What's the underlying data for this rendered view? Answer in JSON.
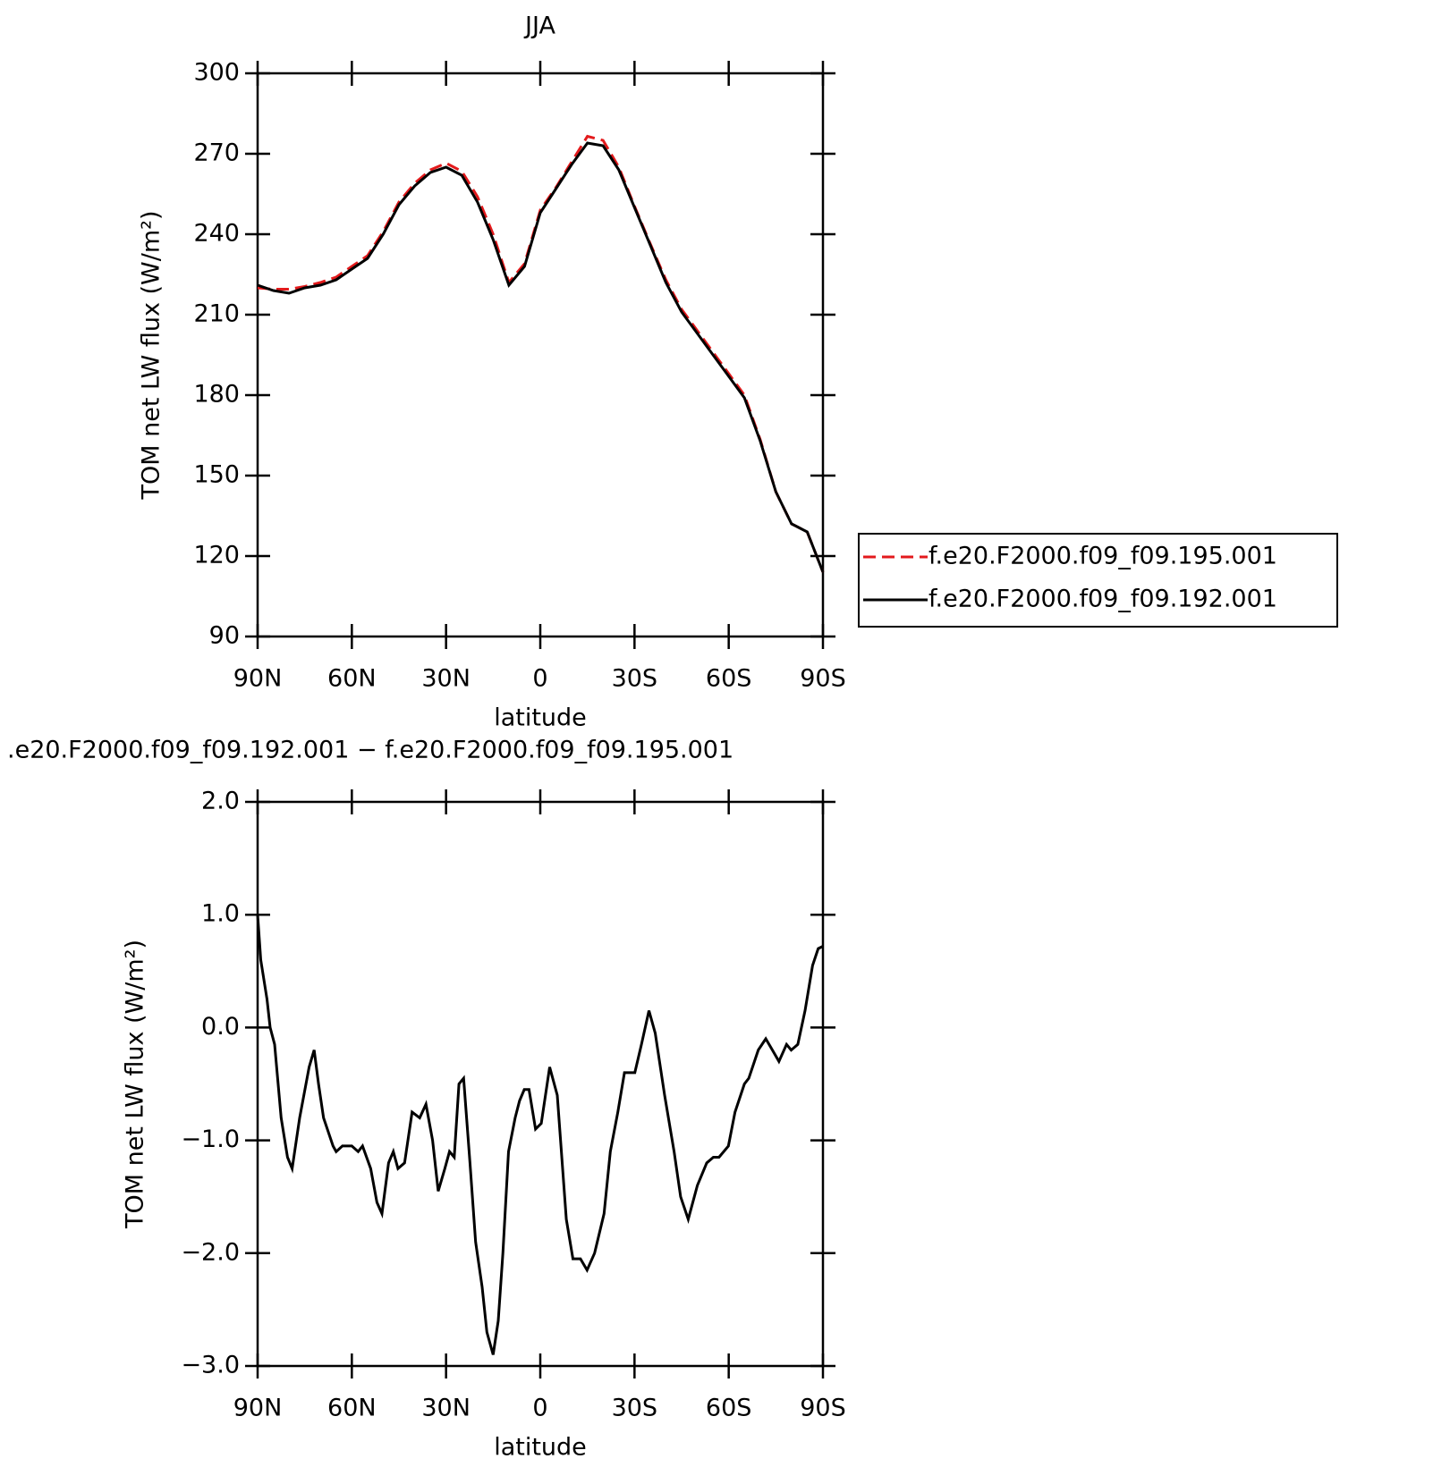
{
  "chart_data": [
    {
      "type": "line",
      "title": "JJA",
      "xlabel": "latitude",
      "ylabel": "TOM net LW flux (W/m²)",
      "x": [
        90,
        85,
        80,
        75,
        70,
        65,
        60,
        55,
        50,
        45,
        40,
        35,
        30,
        25,
        20,
        15,
        10,
        5,
        0,
        -5,
        -10,
        -15,
        -20,
        -25,
        -30,
        -35,
        -40,
        -45,
        -50,
        -55,
        -60,
        -65,
        -70,
        -75,
        -80,
        -85,
        -90
      ],
      "series": [
        {
          "name": "f.e20.F2000.f09_f09.195.001",
          "color": "#e31a1c",
          "linestyle": "dashed",
          "values": [
            220,
            219.5,
            219.5,
            220.5,
            222,
            224,
            228,
            232,
            241,
            252,
            259,
            264,
            266.5,
            263.5,
            254,
            240,
            222,
            229,
            249,
            257.5,
            267,
            276.5,
            275,
            265,
            250.5,
            236.5,
            223,
            212,
            204,
            196,
            188,
            180,
            163.5,
            144,
            132,
            129,
            114
          ]
        },
        {
          "name": "f.e20.F2000.f09_f09.192.001",
          "color": "#000000",
          "linestyle": "solid",
          "values": [
            221,
            219,
            218,
            220,
            221,
            223,
            227,
            231,
            240,
            251,
            258,
            263,
            265,
            262,
            252,
            238,
            221,
            228,
            248,
            257,
            266,
            274,
            273,
            264,
            250,
            236,
            222,
            211,
            203,
            195,
            187,
            179,
            163,
            144,
            132,
            129,
            114
          ]
        }
      ],
      "xlim": [
        90,
        -90
      ],
      "xticks": [
        {
          "value": 90,
          "label": "90N"
        },
        {
          "value": 60,
          "label": "60N"
        },
        {
          "value": 30,
          "label": "30N"
        },
        0,
        {
          "value": -30,
          "label": "30S"
        },
        {
          "value": -60,
          "label": "60S"
        },
        {
          "value": -90,
          "label": "90S"
        }
      ],
      "ylim": [
        90,
        300
      ],
      "yticks": [
        90,
        120,
        150,
        180,
        210,
        240,
        270,
        300
      ],
      "legend": "right"
    },
    {
      "type": "line",
      "title": ".e20.F2000.f09_f09.192.001 − f.e20.F2000.f09_f09.195.001",
      "xlabel": "latitude",
      "ylabel": "TOM net LW flux (W/m²)",
      "x": [
        90,
        89,
        87,
        86,
        84.6,
        82.5,
        80.5,
        79,
        76.6,
        73.6,
        72,
        70.6,
        69,
        66,
        65,
        63,
        60,
        58,
        56.6,
        54,
        52,
        50.4,
        48.3,
        46.8,
        45.3,
        43.2,
        40.8,
        38.4,
        36.4,
        34.3,
        32.5,
        30.4,
        28.9,
        27.4,
        25.9,
        24.4,
        22.4,
        20.6,
        18.5,
        17,
        15,
        13.4,
        11.9,
        10.1,
        8,
        6.6,
        5.1,
        3.6,
        1.5,
        -0.3,
        -3,
        -5.4,
        -8.3,
        -10.4,
        -12.8,
        -14.9,
        -17.3,
        -20.3,
        -22.3,
        -24.7,
        -26.8,
        -28.3,
        -30.1,
        -32.2,
        -34.6,
        -36.6,
        -39.6,
        -42.6,
        -44.7,
        -47.1,
        -50,
        -53,
        -55.1,
        -56.9,
        -59.9,
        -62,
        -65,
        -66.4,
        -69.4,
        -71.8,
        -73.9,
        -76,
        -78.4,
        -79.9,
        -82,
        -84.3,
        -86.7,
        -88.5,
        -90
      ],
      "series": [
        {
          "color": "#000000",
          "linestyle": "solid",
          "values": [
            1.0,
            0.6,
            0.25,
            0,
            -0.15,
            -0.8,
            -1.15,
            -1.25,
            -0.8,
            -0.35,
            -0.2,
            -0.5,
            -0.8,
            -1.05,
            -1.1,
            -1.05,
            -1.05,
            -1.1,
            -1.05,
            -1.25,
            -1.55,
            -1.65,
            -1.2,
            -1.1,
            -1.25,
            -1.2,
            -0.75,
            -0.8,
            -0.68,
            -1.0,
            -1.45,
            -1.25,
            -1.1,
            -1.15,
            -0.5,
            -0.45,
            -1.2,
            -1.9,
            -2.3,
            -2.7,
            -2.9,
            -2.6,
            -2.0,
            -1.1,
            -0.8,
            -0.65,
            -0.55,
            -0.55,
            -0.9,
            -0.85,
            -0.35,
            -0.6,
            -1.7,
            -2.05,
            -2.05,
            -2.15,
            -2.0,
            -1.65,
            -1.1,
            -0.75,
            -0.4,
            -0.4,
            -0.4,
            -0.15,
            0.15,
            -0.05,
            -0.6,
            -1.1,
            -1.5,
            -1.7,
            -1.4,
            -1.2,
            -1.15,
            -1.15,
            -1.05,
            -0.75,
            -0.5,
            -0.45,
            -0.2,
            -0.1,
            -0.2,
            -0.3,
            -0.15,
            -0.2,
            -0.15,
            0.15,
            0.55,
            0.7,
            0.72
          ]
        }
      ],
      "xlim": [
        90,
        -90
      ],
      "xticks": [
        {
          "value": 90,
          "label": "90N"
        },
        {
          "value": 60,
          "label": "60N"
        },
        {
          "value": 30,
          "label": "30N"
        },
        0,
        {
          "value": -30,
          "label": "30S"
        },
        {
          "value": -60,
          "label": "60S"
        },
        {
          "value": -90,
          "label": "90S"
        }
      ],
      "ylim": [
        -3,
        2
      ],
      "yticks": [
        {
          "value": -3,
          "label": "−3.0"
        },
        {
          "value": -2,
          "label": "−2.0"
        },
        {
          "value": -1,
          "label": "−1.0"
        },
        {
          "value": 0,
          "label": "0.0"
        },
        {
          "value": 1,
          "label": "1.0"
        },
        {
          "value": 2,
          "label": "2.0"
        }
      ]
    }
  ]
}
